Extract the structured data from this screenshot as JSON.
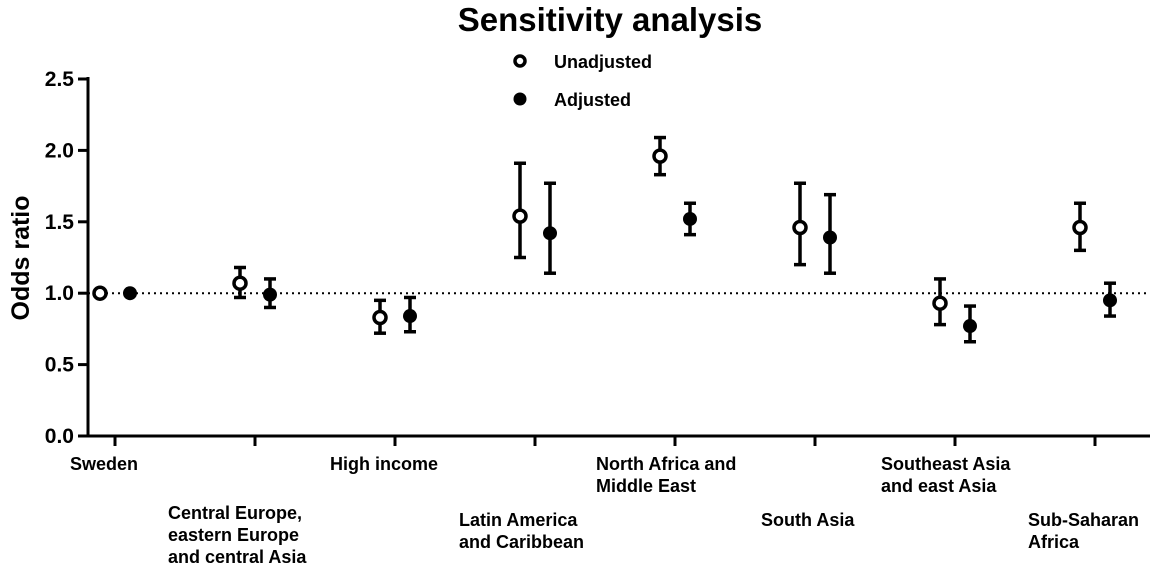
{
  "chart_data": {
    "type": "scatter",
    "title": "Sensitivity analysis",
    "xlabel": "",
    "ylabel": "Odds ratio",
    "ylim": [
      0,
      2.5
    ],
    "yticks": [
      "0.0",
      "0.5",
      "1.0",
      "1.5",
      "2.0",
      "2.5"
    ],
    "reference_line": 1.0,
    "categories": [
      "Sweden",
      "Central Europe, eastern Europe and central Asia",
      "High income",
      "Latin America and Caribbean",
      "North Africa and Middle East",
      "South Asia",
      "Southeast Asia and east Asia",
      "Sub-Saharan Africa"
    ],
    "category_label_lines": [
      [
        "Sweden"
      ],
      [
        "Central Europe,",
        "eastern Europe",
        "and central Asia"
      ],
      [
        "High income"
      ],
      [
        "Latin America",
        "and Caribbean"
      ],
      [
        "North Africa and",
        "Middle East"
      ],
      [
        "South Asia"
      ],
      [
        "Southeast Asia",
        "and east Asia"
      ],
      [
        "Sub-Saharan",
        "Africa"
      ]
    ],
    "series": [
      {
        "name": "Unadjusted",
        "marker": "open-circle",
        "values": [
          1.0,
          1.07,
          0.83,
          1.54,
          1.96,
          1.46,
          0.93,
          1.46
        ],
        "lower": [
          null,
          0.97,
          0.72,
          1.25,
          1.83,
          1.2,
          0.78,
          1.3
        ],
        "upper": [
          null,
          1.18,
          0.95,
          1.91,
          2.09,
          1.77,
          1.1,
          1.63
        ]
      },
      {
        "name": "Adjusted",
        "marker": "filled-circle",
        "values": [
          1.0,
          0.99,
          0.84,
          1.42,
          1.52,
          1.39,
          0.77,
          0.95
        ],
        "lower": [
          null,
          0.9,
          0.73,
          1.14,
          1.41,
          1.14,
          0.66,
          0.84
        ],
        "upper": [
          null,
          1.1,
          0.97,
          1.77,
          1.63,
          1.69,
          0.91,
          1.07
        ]
      }
    ],
    "legend": {
      "position": "top-center"
    },
    "grid": false
  }
}
